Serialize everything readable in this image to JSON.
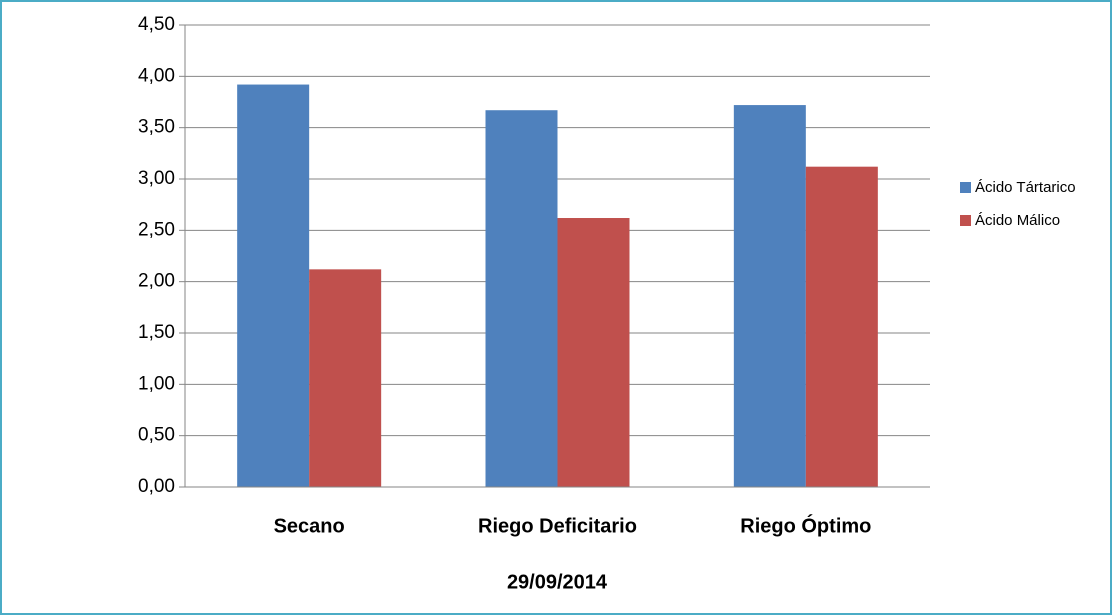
{
  "chart_data": {
    "type": "bar",
    "xlabel": "29/09/2014",
    "categories": [
      "Secano",
      "Riego Deficitario",
      "Riego Óptimo"
    ],
    "series": [
      {
        "name": "Ácido Tártarico",
        "color": "#4f81bd",
        "values": [
          3.92,
          3.67,
          3.72
        ]
      },
      {
        "name": "Ácido Málico",
        "color": "#c0504d",
        "values": [
          2.12,
          2.62,
          3.12
        ]
      }
    ],
    "ylim": [
      0,
      4.5
    ],
    "yticks": [
      {
        "value": 0,
        "label": "0,00"
      },
      {
        "value": 0.5,
        "label": "0,50"
      },
      {
        "value": 1,
        "label": "1,00"
      },
      {
        "value": 1.5,
        "label": "1,50"
      },
      {
        "value": 2,
        "label": "2,00"
      },
      {
        "value": 2.5,
        "label": "2,50"
      },
      {
        "value": 3,
        "label": "3,00"
      },
      {
        "value": 3.5,
        "label": "3,50"
      },
      {
        "value": 4,
        "label": "4,00"
      },
      {
        "value": 4.5,
        "label": "4,50"
      }
    ],
    "grid": true,
    "legend": "right"
  }
}
